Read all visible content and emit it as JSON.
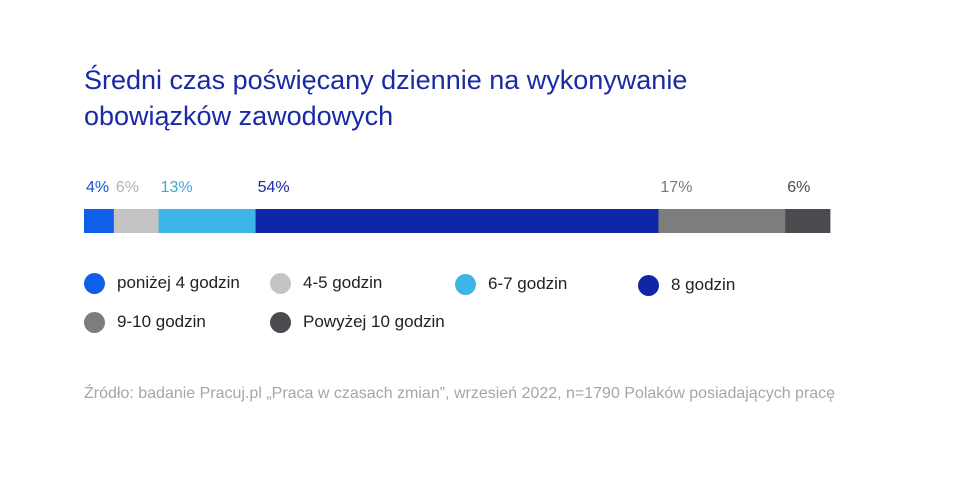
{
  "chart_data": {
    "type": "bar",
    "orientation": "horizontal-stacked",
    "title": [
      "Średni czas poświęcany dziennie na wykonywanie",
      "obowiązków zawodowych"
    ],
    "unit": "%",
    "segments": [
      {
        "name": "poniżej 4 godzin",
        "value": 4,
        "label": "4%",
        "color": "#0f5fe8",
        "label_color": "#1a4fd0"
      },
      {
        "name": "4-5 godzin",
        "value": 6,
        "label": "6%",
        "color": "#c4c4c4",
        "label_color": "#b3b3b3"
      },
      {
        "name": "6-7 godzin",
        "value": 13,
        "label": "13%",
        "color": "#3fb4e6",
        "label_color": "#3aa9e0"
      },
      {
        "name": "8 godzin",
        "value": 54,
        "label": "54%",
        "color": "#1026a8",
        "label_color": "#1a2aa6"
      },
      {
        "name": "9-10 godzin",
        "value": 17,
        "label": "17%",
        "color": "#7d7d7d",
        "label_color": "#7a7a7a"
      },
      {
        "name": "Powyżej 10 godzin",
        "value": 6,
        "label": "6%",
        "color": "#4b4b4f",
        "label_color": "#4b4b4f"
      }
    ],
    "legend_position": "bottom"
  },
  "source": "Źródło: badanie Pracuj.pl „Praca w czasach zmian”, wrzesień 2022, n=1790 Polaków posiadających pracę"
}
